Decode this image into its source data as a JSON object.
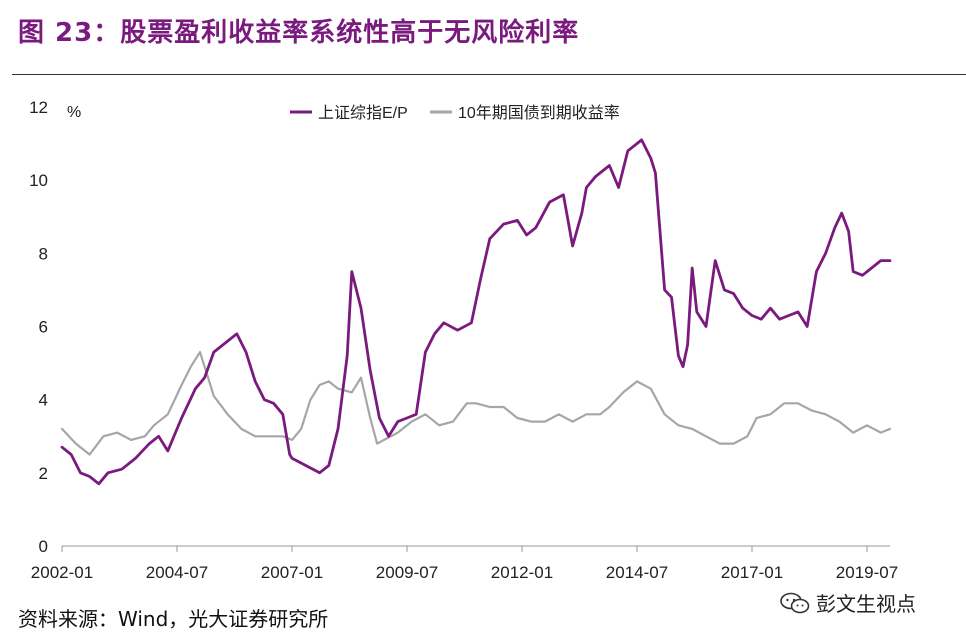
{
  "header": {
    "title": "图 23：股票盈利收益率系统性高于无风险利率"
  },
  "footer": {
    "source": "资料来源：Wind，光大证券研究所"
  },
  "watermark": {
    "text": "彭文生视点",
    "icon": "wechat-icon"
  },
  "colors": {
    "title": "#7b1a7e",
    "series_ep": "#7b1a7e",
    "series_bond": "#a6a6a6"
  },
  "chart_data": {
    "type": "line",
    "ylabel": "%",
    "ylim": [
      0,
      12
    ],
    "yticks": [
      "0",
      "2",
      "4",
      "6",
      "8",
      "10",
      "12"
    ],
    "xlim": [
      2002.0,
      2020.0
    ],
    "xticks": [
      {
        "label": "2002-01",
        "t": 2002.0
      },
      {
        "label": "2004-07",
        "t": 2004.5
      },
      {
        "label": "2007-01",
        "t": 2007.0
      },
      {
        "label": "2009-07",
        "t": 2009.5
      },
      {
        "label": "2012-01",
        "t": 2012.0
      },
      {
        "label": "2014-07",
        "t": 2014.5
      },
      {
        "label": "2017-01",
        "t": 2017.0
      },
      {
        "label": "2019-07",
        "t": 2019.5
      }
    ],
    "legend_position": "top-center",
    "grid": false,
    "series": [
      {
        "name": "上证综指E/P",
        "x": [
          2002.0,
          2002.2,
          2002.4,
          2002.6,
          2002.8,
          2003.0,
          2003.3,
          2003.6,
          2003.9,
          2004.1,
          2004.3,
          2004.6,
          2004.9,
          2005.1,
          2005.3,
          2005.6,
          2005.8,
          2006.0,
          2006.2,
          2006.4,
          2006.6,
          2006.8,
          2006.95,
          2007.0,
          2007.3,
          2007.6,
          2007.8,
          2008.0,
          2008.2,
          2008.3,
          2008.5,
          2008.7,
          2008.9,
          2009.1,
          2009.3,
          2009.5,
          2009.7,
          2009.9,
          2010.1,
          2010.3,
          2010.6,
          2010.9,
          2011.1,
          2011.3,
          2011.6,
          2011.9,
          2012.1,
          2012.3,
          2012.6,
          2012.9,
          2013.1,
          2013.3,
          2013.4,
          2013.6,
          2013.9,
          2014.1,
          2014.3,
          2014.6,
          2014.8,
          2014.9,
          2015.1,
          2015.25,
          2015.4,
          2015.5,
          2015.6,
          2015.7,
          2015.8,
          2016.0,
          2016.2,
          2016.4,
          2016.6,
          2016.8,
          2017.0,
          2017.2,
          2017.4,
          2017.6,
          2017.8,
          2018.0,
          2018.2,
          2018.4,
          2018.6,
          2018.8,
          2018.95,
          2019.1,
          2019.2,
          2019.4,
          2019.6,
          2019.8,
          2020.0
        ],
        "values": [
          2.7,
          2.5,
          2.0,
          1.9,
          1.7,
          2.0,
          2.1,
          2.4,
          2.8,
          3.0,
          2.6,
          3.5,
          4.3,
          4.6,
          5.3,
          5.6,
          5.8,
          5.3,
          4.5,
          4.0,
          3.9,
          3.6,
          2.5,
          2.4,
          2.2,
          2.0,
          2.2,
          3.2,
          5.2,
          7.5,
          6.5,
          4.8,
          3.5,
          3.0,
          3.4,
          3.5,
          3.6,
          5.3,
          5.8,
          6.1,
          5.9,
          6.1,
          7.3,
          8.4,
          8.8,
          8.9,
          8.5,
          8.7,
          9.4,
          9.6,
          8.2,
          9.1,
          9.8,
          10.1,
          10.4,
          9.8,
          10.8,
          11.1,
          10.6,
          10.2,
          7.0,
          6.8,
          5.2,
          4.9,
          5.5,
          7.6,
          6.4,
          6.0,
          7.8,
          7.0,
          6.9,
          6.5,
          6.3,
          6.2,
          6.5,
          6.2,
          6.3,
          6.4,
          6.0,
          7.5,
          8.0,
          8.7,
          9.1,
          8.6,
          7.5,
          7.4,
          7.6,
          7.8,
          7.8
        ]
      },
      {
        "name": "10年期国债到期收益率",
        "x": [
          2002.0,
          2002.3,
          2002.6,
          2002.9,
          2003.2,
          2003.5,
          2003.8,
          2004.0,
          2004.3,
          2004.6,
          2004.8,
          2005.0,
          2005.3,
          2005.6,
          2005.9,
          2006.2,
          2006.5,
          2006.8,
          2007.0,
          2007.2,
          2007.4,
          2007.6,
          2007.8,
          2008.0,
          2008.3,
          2008.5,
          2008.7,
          2008.85,
          2009.0,
          2009.3,
          2009.6,
          2009.9,
          2010.2,
          2010.5,
          2010.8,
          2011.0,
          2011.3,
          2011.6,
          2011.9,
          2012.2,
          2012.5,
          2012.8,
          2013.1,
          2013.4,
          2013.7,
          2013.9,
          2014.2,
          2014.5,
          2014.8,
          2015.1,
          2015.4,
          2015.7,
          2016.0,
          2016.3,
          2016.6,
          2016.9,
          2017.1,
          2017.4,
          2017.7,
          2018.0,
          2018.3,
          2018.6,
          2018.9,
          2019.2,
          2019.5,
          2019.8,
          2020.0
        ],
        "values": [
          3.2,
          2.8,
          2.5,
          3.0,
          3.1,
          2.9,
          3.0,
          3.3,
          3.6,
          4.4,
          4.9,
          5.3,
          4.1,
          3.6,
          3.2,
          3.0,
          3.0,
          3.0,
          2.9,
          3.2,
          4.0,
          4.4,
          4.5,
          4.3,
          4.2,
          4.6,
          3.5,
          2.8,
          2.9,
          3.1,
          3.4,
          3.6,
          3.3,
          3.4,
          3.9,
          3.9,
          3.8,
          3.8,
          3.5,
          3.4,
          3.4,
          3.6,
          3.4,
          3.6,
          3.6,
          3.8,
          4.2,
          4.5,
          4.3,
          3.6,
          3.3,
          3.2,
          3.0,
          2.8,
          2.8,
          3.0,
          3.5,
          3.6,
          3.9,
          3.9,
          3.7,
          3.6,
          3.4,
          3.1,
          3.3,
          3.1,
          3.2
        ]
      }
    ]
  }
}
